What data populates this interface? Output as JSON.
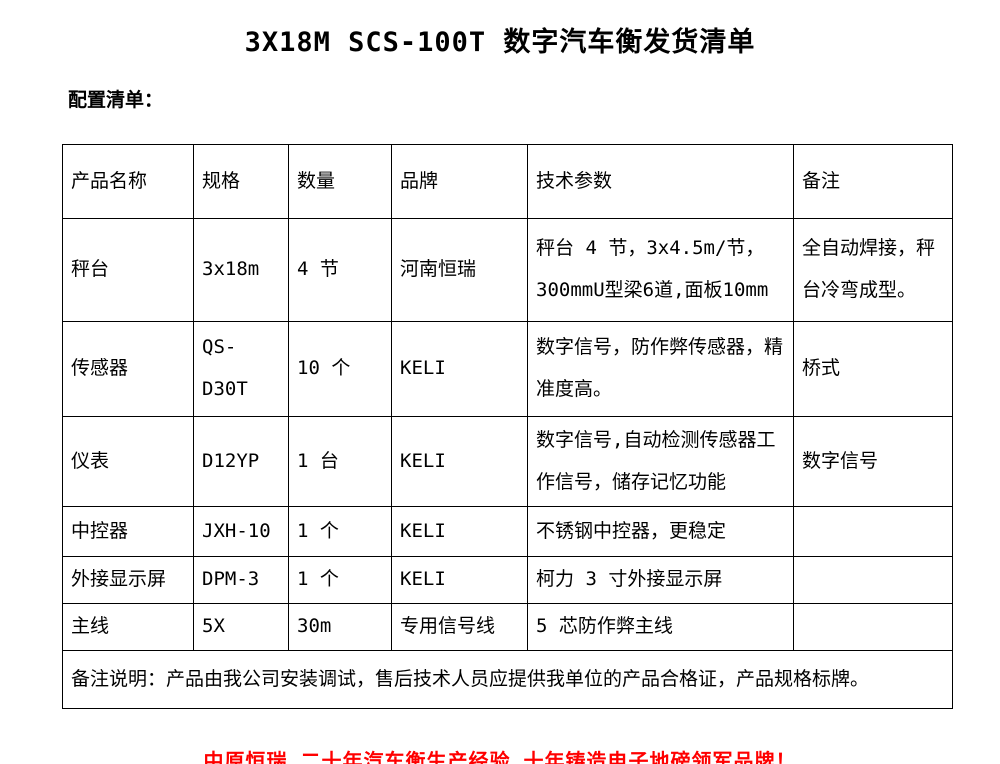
{
  "page": {
    "title": "3X18M SCS-100T 数字汽车衡发货清单",
    "subtitle": "配置清单：",
    "slogan": "中原恒瑞 二十年汽车衡生产经验 十年铸造电子地磅领军品牌！"
  },
  "colors": {
    "slogan_red": "#ff0000",
    "table_border": "#000000",
    "text": "#000000",
    "background": "#ffffff"
  },
  "table": {
    "headers": [
      "产品名称",
      "规格",
      "数量",
      "品牌",
      "技术参数",
      "备注"
    ],
    "rows": [
      {
        "name": "秤台",
        "spec": "3x18m",
        "qty": "4 节",
        "brand": "河南恒瑞",
        "tech": "秤台 4 节，3x4.5m/节，300mmU型梁6道,面板10mm",
        "note": "全自动焊接，秤台冷弯成型。"
      },
      {
        "name": "传感器",
        "spec": "QS-D30T",
        "qty": "10 个",
        "brand": "KELI",
        "tech": "数字信号，防作弊传感器，精准度高。",
        "note": "桥式"
      },
      {
        "name": "仪表",
        "spec": "D12YP",
        "qty": "1 台",
        "brand": "KELI",
        "tech": "数字信号,自动检测传感器工作信号，储存记忆功能",
        "note": "数字信号"
      },
      {
        "name": "中控器",
        "spec": "JXH-10",
        "qty": "1 个",
        "brand": "KELI",
        "tech": "不锈钢中控器，更稳定",
        "note": ""
      },
      {
        "name": "外接显示屏",
        "spec": "DPM-3",
        "qty": "1 个",
        "brand": "KELI",
        "tech": "柯力 3 寸外接显示屏",
        "note": ""
      },
      {
        "name": "主线",
        "spec": "5X",
        "qty": "30m",
        "brand": "专用信号线",
        "tech": "5 芯防作弊主线",
        "note": ""
      }
    ],
    "remark": "备注说明：产品由我公司安装调试，售后技术人员应提供我单位的产品合格证，产品规格标牌。"
  }
}
